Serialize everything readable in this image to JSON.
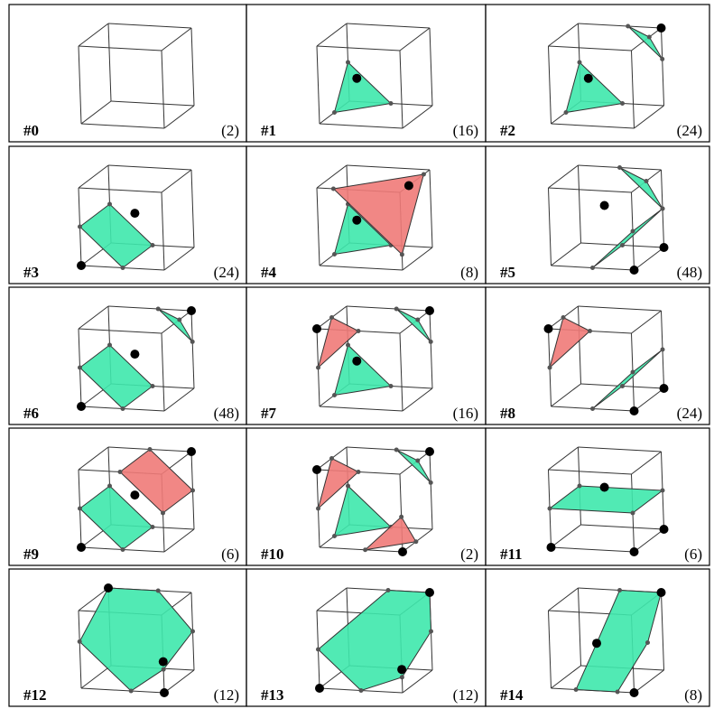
{
  "panels": [
    {
      "label": "#0",
      "count": "(2)"
    },
    {
      "label": "#1",
      "count": "(16)"
    },
    {
      "label": "#2",
      "count": "(24)"
    },
    {
      "label": "#3",
      "count": "(24)"
    },
    {
      "label": "#4",
      "count": "(8)"
    },
    {
      "label": "#5",
      "count": "(48)"
    },
    {
      "label": "#6",
      "count": "(48)"
    },
    {
      "label": "#7",
      "count": "(16)"
    },
    {
      "label": "#8",
      "count": "(24)"
    },
    {
      "label": "#9",
      "count": "(6)"
    },
    {
      "label": "#10",
      "count": "(2)"
    },
    {
      "label": "#11",
      "count": "(6)"
    },
    {
      "label": "#12",
      "count": "(12)"
    },
    {
      "label": "#13",
      "count": "(12)"
    },
    {
      "label": "#14",
      "count": "(8)"
    }
  ]
}
